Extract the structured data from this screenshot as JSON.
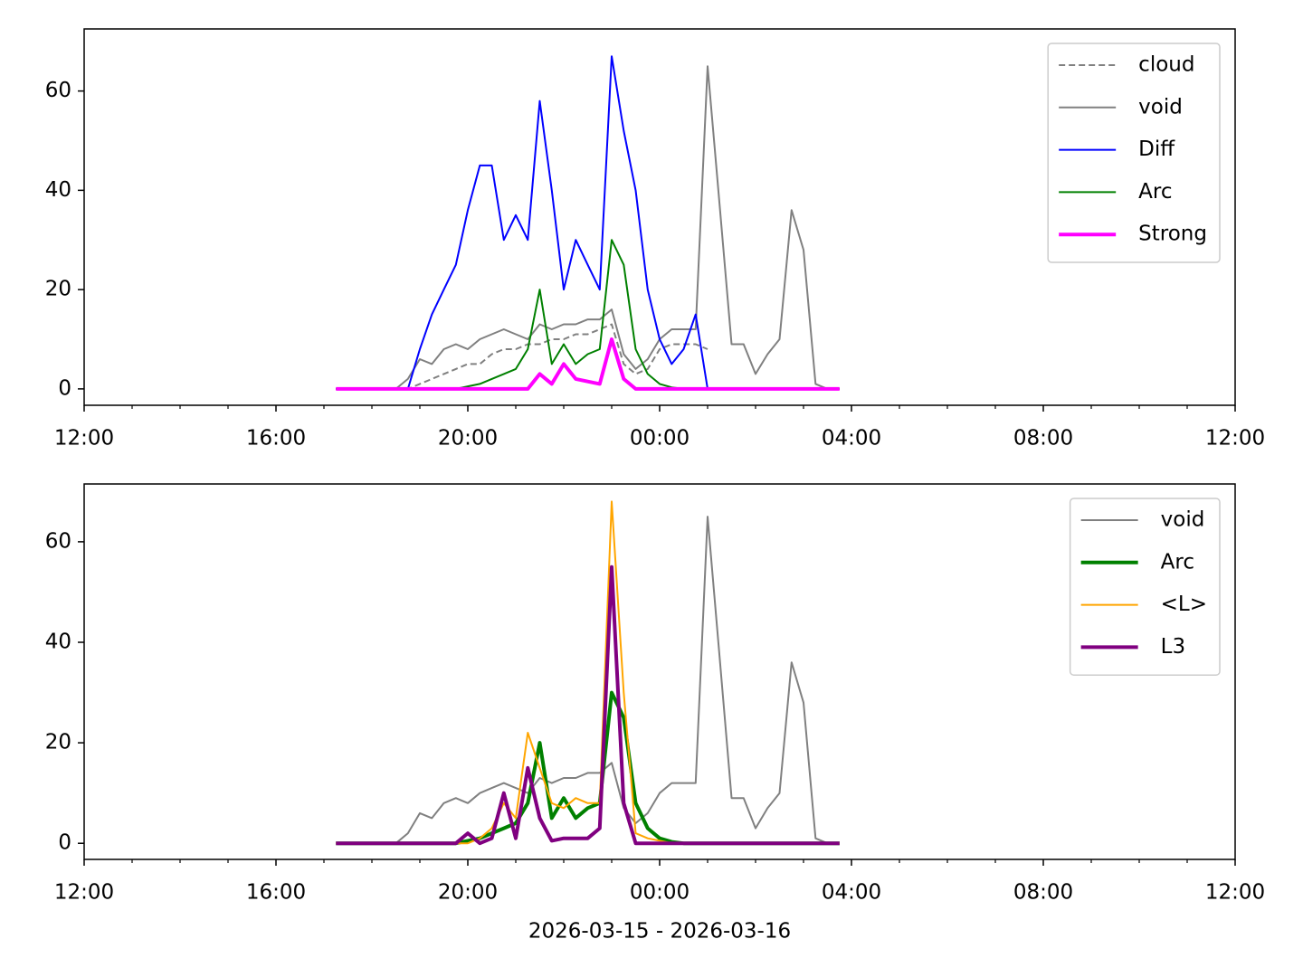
{
  "chart_data": [
    {
      "type": "line",
      "legend": "upper right",
      "x": [
        "2026-03-15 17:15",
        "2026-03-15 17:30",
        "2026-03-15 17:45",
        "2026-03-15 18:00",
        "2026-03-15 18:15",
        "2026-03-15 18:30",
        "2026-03-15 18:45",
        "2026-03-15 19:00",
        "2026-03-15 19:15",
        "2026-03-15 19:30",
        "2026-03-15 19:45",
        "2026-03-15 20:00",
        "2026-03-15 20:15",
        "2026-03-15 20:30",
        "2026-03-15 20:45",
        "2026-03-15 21:00",
        "2026-03-15 21:15",
        "2026-03-15 21:30",
        "2026-03-15 21:45",
        "2026-03-15 22:00",
        "2026-03-15 22:15",
        "2026-03-15 22:30",
        "2026-03-15 22:45",
        "2026-03-15 23:00",
        "2026-03-15 23:15",
        "2026-03-15 23:30",
        "2026-03-15 23:45",
        "2026-03-16 00:00",
        "2026-03-16 00:15",
        "2026-03-16 00:30",
        "2026-03-16 00:45",
        "2026-03-16 01:00",
        "2026-03-16 01:15",
        "2026-03-16 01:30",
        "2026-03-16 01:45",
        "2026-03-16 02:00",
        "2026-03-16 02:15",
        "2026-03-16 02:30",
        "2026-03-16 02:45",
        "2026-03-16 03:00",
        "2026-03-16 03:15",
        "2026-03-16 03:30",
        "2026-03-16 03:45"
      ],
      "xlim": [
        "2026-03-15 12:00",
        "2026-03-16 12:00"
      ],
      "xticks": [
        {
          "value": "2026-03-15 12:00",
          "label": "12:00"
        },
        {
          "value": "2026-03-15 16:00",
          "label": "16:00"
        },
        {
          "value": "2026-03-15 20:00",
          "label": "20:00"
        },
        {
          "value": "2026-03-16 00:00",
          "label": "00:00"
        },
        {
          "value": "2026-03-16 04:00",
          "label": "04:00"
        },
        {
          "value": "2026-03-16 08:00",
          "label": "08:00"
        },
        {
          "value": "2026-03-16 12:00",
          "label": "12:00"
        }
      ],
      "xminorticks": [
        "2026-03-15 13:00",
        "2026-03-15 14:00",
        "2026-03-15 15:00",
        "2026-03-15 17:00",
        "2026-03-15 18:00",
        "2026-03-15 19:00",
        "2026-03-15 21:00",
        "2026-03-15 22:00",
        "2026-03-15 23:00",
        "2026-03-16 01:00",
        "2026-03-16 02:00",
        "2026-03-16 03:00",
        "2026-03-16 05:00",
        "2026-03-16 06:00",
        "2026-03-16 07:00",
        "2026-03-16 09:00",
        "2026-03-16 10:00",
        "2026-03-16 11:00"
      ],
      "ylim": [
        -3.3,
        72.5
      ],
      "yticks": [
        0,
        20,
        40,
        60
      ],
      "series": [
        {
          "name": "cloud",
          "color": "#808080",
          "linestyle": "dashed",
          "linewidth": 2,
          "values": [
            0,
            0,
            0,
            0,
            0,
            0,
            0,
            1,
            2,
            3,
            4,
            5,
            5,
            7,
            8,
            8,
            9,
            9,
            10,
            10,
            11,
            11,
            12,
            13,
            5,
            3,
            4,
            8,
            9,
            9,
            9,
            8,
            null,
            null,
            null,
            null,
            null,
            null,
            null,
            null,
            null,
            null,
            null
          ]
        },
        {
          "name": "void",
          "color": "#808080",
          "linestyle": "solid",
          "linewidth": 2,
          "values": [
            0,
            0,
            0,
            0,
            0,
            0,
            2,
            6,
            5,
            8,
            9,
            8,
            10,
            11,
            12,
            11,
            10,
            13,
            12,
            13,
            13,
            14,
            14,
            16,
            7,
            4,
            6,
            10,
            12,
            12,
            12,
            65,
            37,
            9,
            9,
            3,
            7,
            10,
            36,
            28,
            1,
            0,
            0
          ]
        },
        {
          "name": "Diff",
          "color": "#0000ff",
          "linestyle": "solid",
          "linewidth": 2,
          "values": [
            0,
            0,
            0,
            0,
            0,
            0,
            0,
            8,
            15,
            20,
            25,
            36,
            45,
            45,
            30,
            35,
            30,
            58,
            40,
            20,
            30,
            25,
            20,
            67,
            52,
            40,
            20,
            10,
            5,
            8,
            15,
            0,
            0,
            0,
            0,
            0,
            0,
            0,
            0,
            0,
            0,
            0,
            0
          ]
        },
        {
          "name": "Arc",
          "color": "#008000",
          "linestyle": "solid",
          "linewidth": 2,
          "values": [
            0,
            0,
            0,
            0,
            0,
            0,
            0,
            0,
            0,
            0,
            0,
            0.5,
            1,
            2,
            3,
            4,
            8,
            20,
            5,
            9,
            5,
            7,
            8,
            30,
            25,
            8,
            3,
            1,
            0.3,
            0,
            0,
            0,
            0,
            0,
            0,
            0,
            0,
            0,
            0,
            0,
            0,
            0,
            0
          ]
        },
        {
          "name": "Strong",
          "color": "#ff00ff",
          "linestyle": "solid",
          "linewidth": 4,
          "values": [
            0,
            0,
            0,
            0,
            0,
            0,
            0,
            0,
            0,
            0,
            0,
            0,
            0,
            0,
            0,
            0,
            0,
            3,
            1,
            5,
            2,
            1.5,
            1,
            10,
            2,
            0,
            0,
            0,
            0,
            0,
            0,
            0,
            0,
            0,
            0,
            0,
            0,
            0,
            0,
            0,
            0,
            0,
            0
          ]
        }
      ]
    },
    {
      "type": "line",
      "legend": "upper right",
      "xlabel": "2026-03-15 - 2026-03-16",
      "x": [
        "2026-03-15 17:15",
        "2026-03-15 17:30",
        "2026-03-15 17:45",
        "2026-03-15 18:00",
        "2026-03-15 18:15",
        "2026-03-15 18:30",
        "2026-03-15 18:45",
        "2026-03-15 19:00",
        "2026-03-15 19:15",
        "2026-03-15 19:30",
        "2026-03-15 19:45",
        "2026-03-15 20:00",
        "2026-03-15 20:15",
        "2026-03-15 20:30",
        "2026-03-15 20:45",
        "2026-03-15 21:00",
        "2026-03-15 21:15",
        "2026-03-15 21:30",
        "2026-03-15 21:45",
        "2026-03-15 22:00",
        "2026-03-15 22:15",
        "2026-03-15 22:30",
        "2026-03-15 22:45",
        "2026-03-15 23:00",
        "2026-03-15 23:15",
        "2026-03-15 23:30",
        "2026-03-15 23:45",
        "2026-03-16 00:00",
        "2026-03-16 00:15",
        "2026-03-16 00:30",
        "2026-03-16 00:45",
        "2026-03-16 01:00",
        "2026-03-16 01:15",
        "2026-03-16 01:30",
        "2026-03-16 01:45",
        "2026-03-16 02:00",
        "2026-03-16 02:15",
        "2026-03-16 02:30",
        "2026-03-16 02:45",
        "2026-03-16 03:00",
        "2026-03-16 03:15",
        "2026-03-16 03:30",
        "2026-03-16 03:45"
      ],
      "xlim": [
        "2026-03-15 12:00",
        "2026-03-16 12:00"
      ],
      "xticks": [
        {
          "value": "2026-03-15 12:00",
          "label": "12:00"
        },
        {
          "value": "2026-03-15 16:00",
          "label": "16:00"
        },
        {
          "value": "2026-03-15 20:00",
          "label": "20:00"
        },
        {
          "value": "2026-03-16 00:00",
          "label": "00:00"
        },
        {
          "value": "2026-03-16 04:00",
          "label": "04:00"
        },
        {
          "value": "2026-03-16 08:00",
          "label": "08:00"
        },
        {
          "value": "2026-03-16 12:00",
          "label": "12:00"
        }
      ],
      "xminorticks": [
        "2026-03-15 13:00",
        "2026-03-15 14:00",
        "2026-03-15 15:00",
        "2026-03-15 17:00",
        "2026-03-15 18:00",
        "2026-03-15 19:00",
        "2026-03-15 21:00",
        "2026-03-15 22:00",
        "2026-03-15 23:00",
        "2026-03-16 01:00",
        "2026-03-16 02:00",
        "2026-03-16 03:00",
        "2026-03-16 05:00",
        "2026-03-16 06:00",
        "2026-03-16 07:00",
        "2026-03-16 09:00",
        "2026-03-16 10:00",
        "2026-03-16 11:00"
      ],
      "ylim": [
        -3.2,
        71.5
      ],
      "yticks": [
        0,
        20,
        40,
        60
      ],
      "series": [
        {
          "name": "void",
          "color": "#808080",
          "linestyle": "solid",
          "linewidth": 2,
          "values": [
            0,
            0,
            0,
            0,
            0,
            0,
            2,
            6,
            5,
            8,
            9,
            8,
            10,
            11,
            12,
            11,
            10,
            13,
            12,
            13,
            13,
            14,
            14,
            16,
            7,
            4,
            6,
            10,
            12,
            12,
            12,
            65,
            37,
            9,
            9,
            3,
            7,
            10,
            36,
            28,
            1,
            0,
            0
          ]
        },
        {
          "name": "Arc",
          "color": "#008000",
          "linestyle": "solid",
          "linewidth": 4,
          "values": [
            0,
            0,
            0,
            0,
            0,
            0,
            0,
            0,
            0,
            0,
            0,
            0.5,
            1,
            2,
            3,
            4,
            8,
            20,
            5,
            9,
            5,
            7,
            8,
            30,
            25,
            8,
            3,
            1,
            0.3,
            0,
            0,
            0,
            0,
            0,
            0,
            0,
            0,
            0,
            0,
            0,
            0,
            0,
            0
          ]
        },
        {
          "name": "<L>",
          "color": "#ffa500",
          "linestyle": "solid",
          "linewidth": 2,
          "values": [
            0,
            0,
            0,
            0,
            0,
            0,
            0,
            0,
            0,
            0,
            0,
            0,
            1,
            3,
            8,
            5,
            22,
            15,
            8,
            7,
            9,
            8,
            8,
            68,
            30,
            2,
            1,
            0.5,
            0,
            0,
            0,
            0,
            0,
            0,
            0,
            0,
            0,
            0,
            0,
            0,
            0,
            0,
            0
          ]
        },
        {
          "name": "L3",
          "color": "#800080",
          "linestyle": "solid",
          "linewidth": 4,
          "values": [
            0,
            0,
            0,
            0,
            0,
            0,
            0,
            0,
            0,
            0,
            0,
            2,
            0,
            1,
            10,
            1,
            15,
            5,
            0.5,
            1,
            1,
            1,
            3,
            55,
            8,
            0,
            0,
            0,
            0,
            0,
            0,
            0,
            0,
            0,
            0,
            0,
            0,
            0,
            0,
            0,
            0,
            0,
            0
          ]
        }
      ]
    }
  ]
}
